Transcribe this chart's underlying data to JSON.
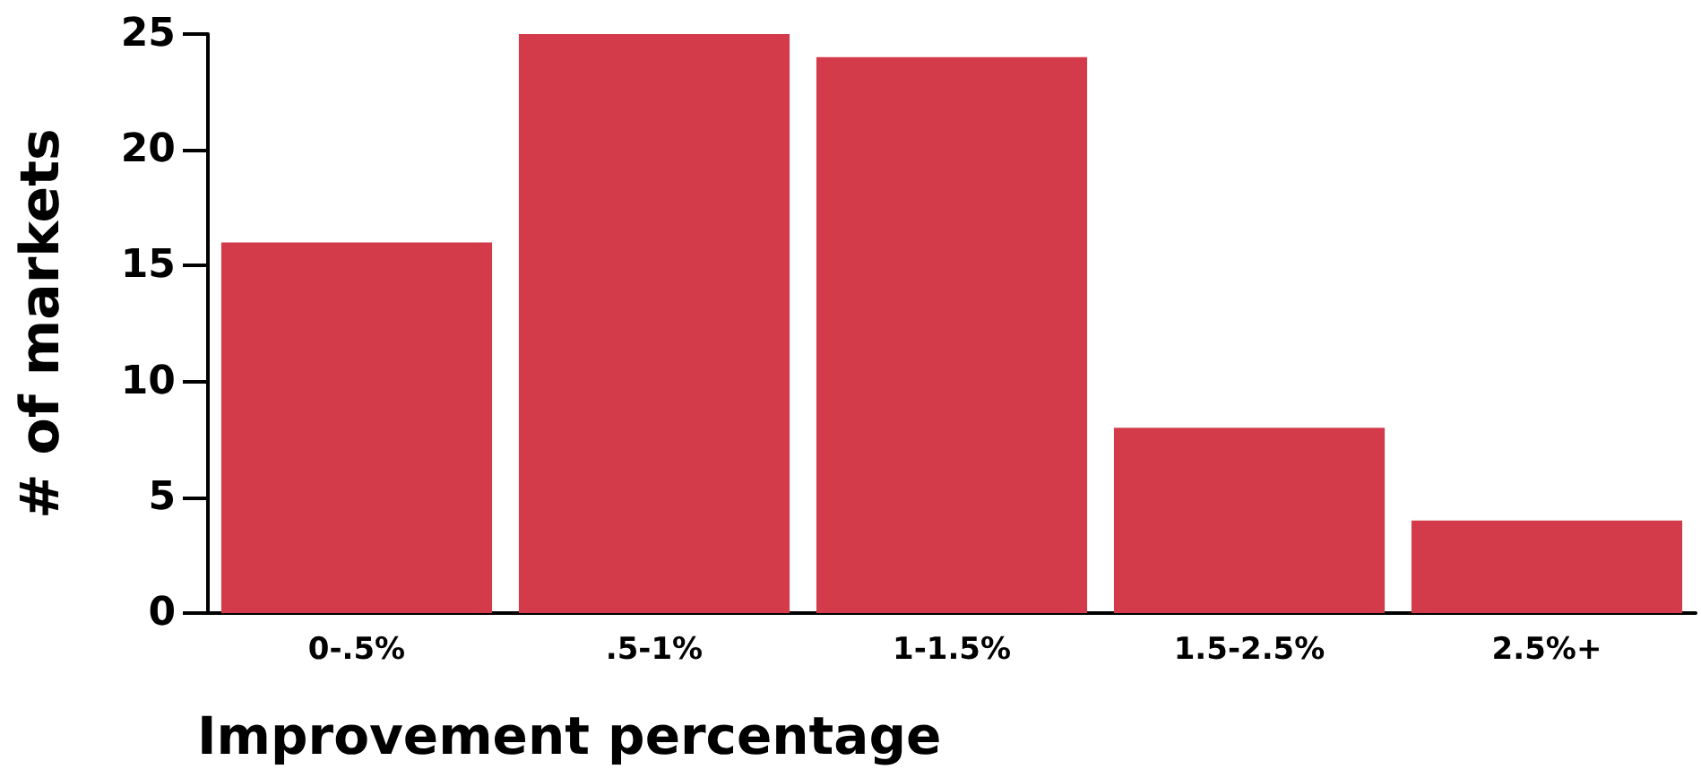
{
  "chart_data": {
    "type": "bar",
    "xlabel": "Improvement percentage",
    "ylabel": "# of markets",
    "categories": [
      "0-.5%",
      ".5-1%",
      "1-1.5%",
      "1.5-2.5%",
      "2.5%+"
    ],
    "values": [
      16,
      25,
      24,
      8,
      4
    ],
    "color": "#d33a4a",
    "ylim": [
      0,
      25
    ],
    "yticks": [
      0,
      5,
      10,
      15,
      20,
      25
    ],
    "grid": false
  }
}
